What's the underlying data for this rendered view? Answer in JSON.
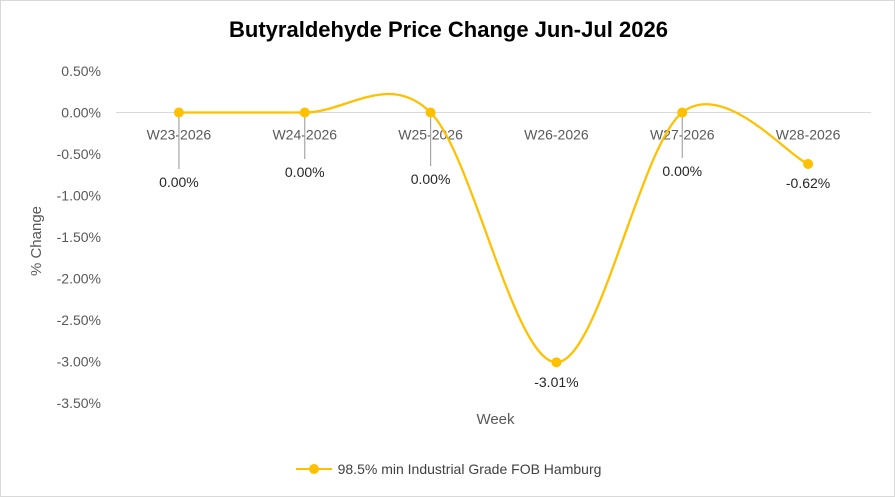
{
  "chart_data": {
    "type": "line",
    "title": "Butyraldehyde Price Change Jun-Jul 2026",
    "xlabel": "Week",
    "ylabel": "% Change",
    "categories": [
      "W23-2026",
      "W24-2026",
      "W25-2026",
      "W26-2026",
      "W27-2026",
      "W28-2026"
    ],
    "series": [
      {
        "name": "98.5% min Industrial Grade FOB Hamburg",
        "values": [
          0.0,
          0.0,
          0.0,
          -3.01,
          0.0,
          -0.62
        ],
        "data_labels": [
          "0.00%",
          "0.00%",
          "0.00%",
          "-3.01%",
          "0.00%",
          "-0.62%"
        ],
        "color": "#FFC000",
        "smooth": true
      }
    ],
    "yticks": [
      "0.50%",
      "0.00%",
      "-0.50%",
      "-1.00%",
      "-1.50%",
      "-2.00%",
      "-2.50%",
      "-3.00%",
      "-3.50%"
    ],
    "ylim": [
      -3.5,
      0.5
    ],
    "grid": false,
    "legend_position": "bottom"
  }
}
